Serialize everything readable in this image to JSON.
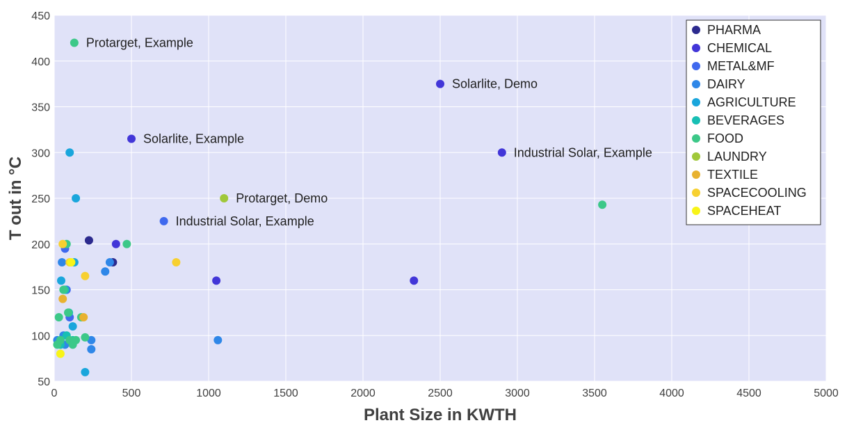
{
  "chart_data": {
    "type": "scatter",
    "title": "",
    "xlabel": "Plant Size in KWTH",
    "ylabel": "T out in °C",
    "xlim": [
      0,
      5000
    ],
    "ylim": [
      50,
      450
    ],
    "x_ticks": [
      "0",
      "500",
      "1000",
      "1500",
      "2000",
      "2500",
      "3000",
      "3500",
      "4000",
      "4500",
      "5000"
    ],
    "y_ticks": [
      "50",
      "100",
      "150",
      "200",
      "250",
      "300",
      "350",
      "400",
      "450"
    ],
    "grid": true,
    "legend_position": "top-right",
    "background_color": "#e0e2f8",
    "series": [
      {
        "name": "PHARMA",
        "color": "#2c2a8e",
        "points": [
          [
            225,
            204
          ],
          [
            380,
            180
          ]
        ]
      },
      {
        "name": "CHEMICAL",
        "color": "#4236d8",
        "points": [
          [
            500,
            315
          ],
          [
            2500,
            375
          ],
          [
            2900,
            300
          ],
          [
            400,
            200
          ],
          [
            1050,
            160
          ],
          [
            2330,
            160
          ]
        ]
      },
      {
        "name": "METAL&MF",
        "color": "#3f69ee",
        "points": [
          [
            710,
            225
          ],
          [
            70,
            195
          ],
          [
            100,
            120
          ],
          [
            80,
            150
          ]
        ]
      },
      {
        "name": "DAIRY",
        "color": "#2f87e8",
        "points": [
          [
            330,
            170
          ],
          [
            360,
            180
          ],
          [
            1060,
            95
          ],
          [
            240,
            85
          ],
          [
            240,
            95
          ],
          [
            50,
            180
          ],
          [
            60,
            100
          ],
          [
            70,
            90
          ],
          [
            20,
            95
          ]
        ]
      },
      {
        "name": "AGRICULTURE",
        "color": "#1aa6dc",
        "points": [
          [
            100,
            300
          ],
          [
            140,
            250
          ],
          [
            200,
            60
          ],
          [
            120,
            110
          ],
          [
            130,
            180
          ],
          [
            45,
            160
          ]
        ]
      },
      {
        "name": "BEVERAGES",
        "color": "#18bfb4",
        "points": [
          [
            95,
            125
          ],
          [
            70,
            150
          ],
          [
            80,
            100
          ],
          [
            40,
            90
          ],
          [
            120,
            95
          ]
        ]
      },
      {
        "name": "FOOD",
        "color": "#3cc888",
        "points": [
          [
            130,
            420
          ],
          [
            3550,
            243
          ],
          [
            470,
            200
          ],
          [
            200,
            98
          ],
          [
            80,
            200
          ],
          [
            60,
            150
          ],
          [
            30,
            120
          ],
          [
            90,
            125
          ],
          [
            100,
            95
          ],
          [
            120,
            90
          ],
          [
            140,
            95
          ],
          [
            40,
            95
          ],
          [
            20,
            90
          ],
          [
            175,
            120
          ]
        ]
      },
      {
        "name": "LAUNDRY",
        "color": "#a0c83a",
        "points": [
          [
            1100,
            250
          ]
        ]
      },
      {
        "name": "TEXTILE",
        "color": "#e8b230",
        "points": [
          [
            55,
            140
          ],
          [
            190,
            120
          ]
        ]
      },
      {
        "name": "SPACECOOLING",
        "color": "#f7d030",
        "points": [
          [
            790,
            180
          ],
          [
            200,
            165
          ],
          [
            55,
            200
          ],
          [
            100,
            180
          ]
        ]
      },
      {
        "name": "SPACEHEAT",
        "color": "#f8f418",
        "points": [
          [
            40,
            80
          ],
          [
            110,
            180
          ]
        ]
      }
    ],
    "annotations": [
      {
        "text": "Protarget, Example",
        "x": 130,
        "y": 420
      },
      {
        "text": "Solarlite, Demo",
        "x": 2500,
        "y": 375
      },
      {
        "text": "Solarlite, Example",
        "x": 500,
        "y": 315
      },
      {
        "text": "Industrial Solar, Example",
        "x": 2900,
        "y": 300
      },
      {
        "text": "Protarget, Demo",
        "x": 1100,
        "y": 250
      },
      {
        "text": "Industrial Solar, Example",
        "x": 710,
        "y": 225
      }
    ]
  }
}
